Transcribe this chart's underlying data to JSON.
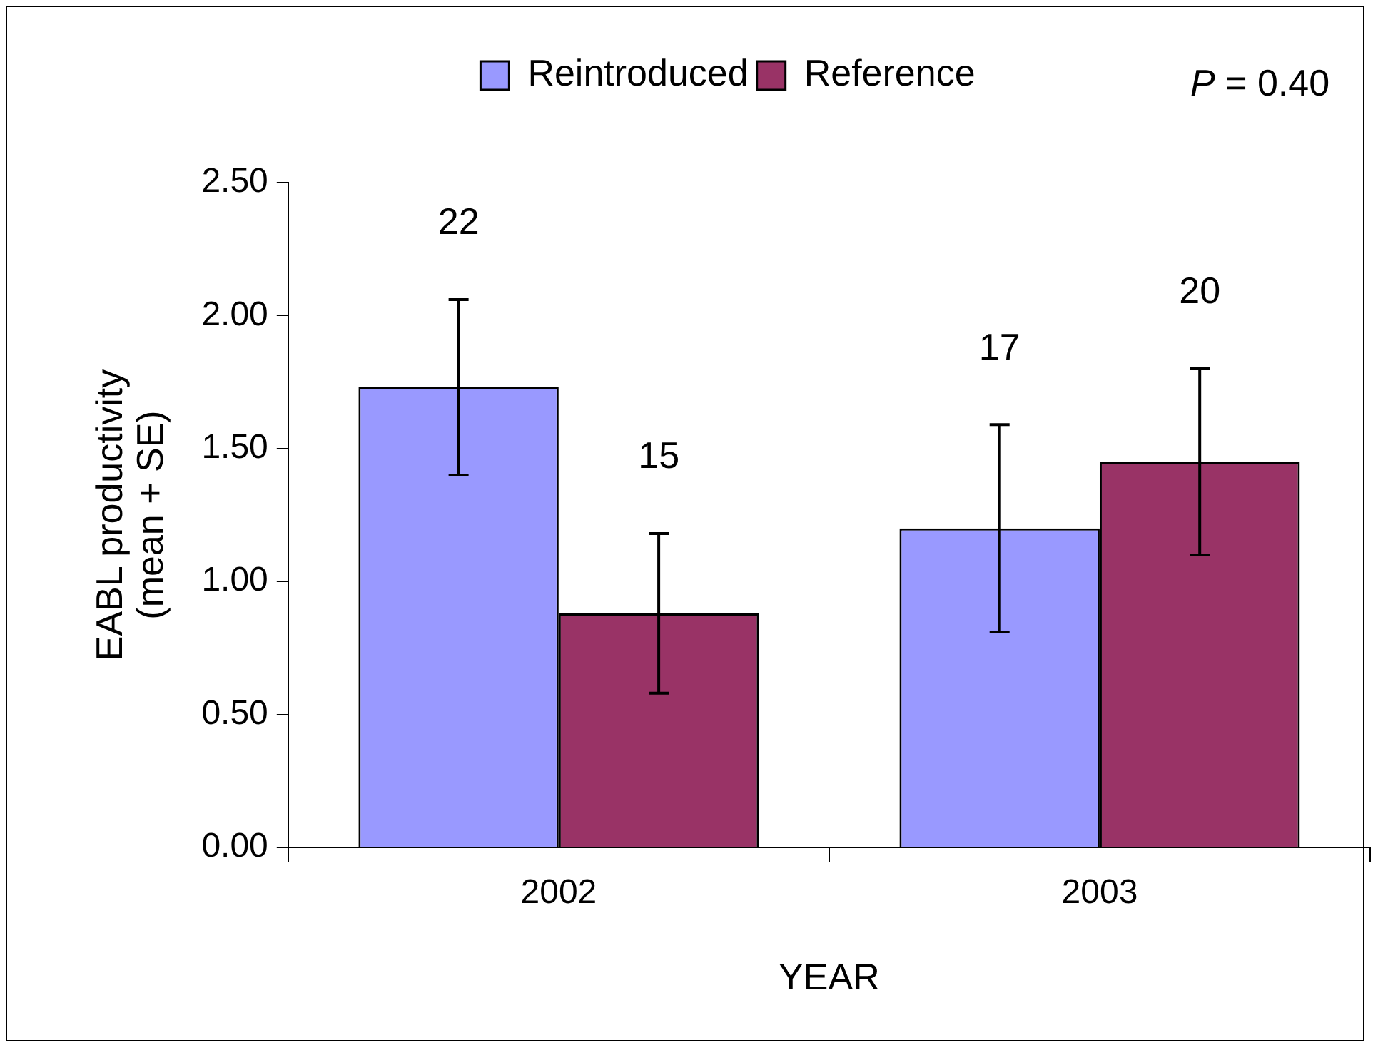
{
  "chart_data": {
    "type": "bar",
    "xlabel": "YEAR",
    "ylabel": "EABL productivity\n(mean + SE)",
    "categories": [
      "2002",
      "2003"
    ],
    "series": [
      {
        "name": "Reintroduced",
        "color": "#9999ff",
        "values": [
          1.73,
          1.2
        ],
        "errors": [
          0.33,
          0.39
        ]
      },
      {
        "name": "Reference",
        "color": "#993366",
        "values": [
          0.88,
          1.45
        ],
        "errors": [
          0.3,
          0.35
        ]
      }
    ],
    "ylim": [
      0,
      2.5
    ],
    "yticks": [
      {
        "value": 0,
        "label": "0.00"
      },
      {
        "value": 0.5,
        "label": "0.50"
      },
      {
        "value": 1,
        "label": "1.00"
      },
      {
        "value": 1.5,
        "label": "1.50"
      },
      {
        "value": 2,
        "label": "2.00"
      },
      {
        "value": 2.5,
        "label": "2.50"
      }
    ],
    "grid": false,
    "legend": "top",
    "annotations": [
      "P = 0.40",
      "22",
      "15",
      "17",
      "20"
    ]
  }
}
